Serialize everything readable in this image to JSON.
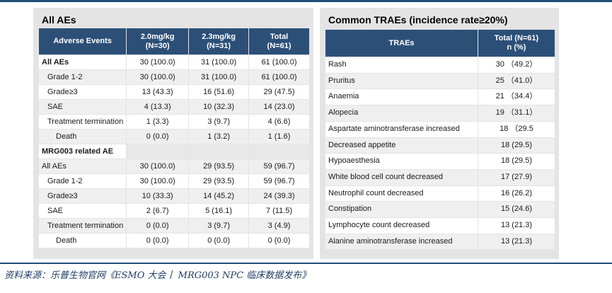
{
  "left": {
    "title": "All AEs",
    "headers": [
      "Adverse Events",
      "2.0mg/kg\n(N=30)",
      "2.3mg/kg\n(N=31)",
      "Total\n(N=61)"
    ],
    "rows": [
      {
        "label": "All AEs",
        "c1": "30 (100.0)",
        "c2": "31 (100.0)",
        "c3": "61 (100.0)"
      },
      {
        "label": "Grade 1-2",
        "c1": "30 (100.0)",
        "c2": "31 (100.0)",
        "c3": "61 (100.0)"
      },
      {
        "label": "Grade≥3",
        "c1": "13 (43.3)",
        "c2": "16 (51.6)",
        "c3": "29 (47.5)"
      },
      {
        "label": "SAE",
        "c1": "4 (13.3)",
        "c2": "10 (32.3)",
        "c3": "14 (23.0)"
      },
      {
        "label": "Treatment termination",
        "c1": "1 (3.3)",
        "c2": "3 (9.7)",
        "c3": "4 (6.6)"
      },
      {
        "label": "Death",
        "c1": "0 (0.0)",
        "c2": "1 (3.2)",
        "c3": "1 (1.6)"
      },
      {
        "label": "MRG003 related AE",
        "c1": "",
        "c2": "",
        "c3": ""
      },
      {
        "label": "All AEs",
        "c1": "30 (100.0)",
        "c2": "29 (93.5)",
        "c3": "59 (96.7)"
      },
      {
        "label": "Grade 1-2",
        "c1": "30 (100.0)",
        "c2": "29 (93.5)",
        "c3": "59 (96.7)"
      },
      {
        "label": "Grade≥3",
        "c1": "10 (33.3)",
        "c2": "14 (45.2)",
        "c3": "24 (39.3)"
      },
      {
        "label": "SAE",
        "c1": "2 (6.7)",
        "c2": "5 (16.1)",
        "c3": "7 (11.5)"
      },
      {
        "label": "Treatment termination",
        "c1": "0 (0.0)",
        "c2": "3 (9.7)",
        "c3": "3 (4.9)"
      },
      {
        "label": "Death",
        "c1": "0 (0.0)",
        "c2": "0 (0.0)",
        "c3": "0 (0.0)"
      }
    ]
  },
  "right": {
    "title": "Common TRAEs (incidence rate≥20%)",
    "headers": [
      "TRAEs",
      "Total (N=61)\nn (%)"
    ],
    "rows": [
      {
        "label": "Rash",
        "value": "30 （49.2）"
      },
      {
        "label": "Pruritus",
        "value": "25 （41.0）"
      },
      {
        "label": "Anaemia",
        "value": "21 （34.4）"
      },
      {
        "label": "Alopecia",
        "value": "19 （31.1）"
      },
      {
        "label": "Aspartate aminotransferase increased",
        "value": "18 （29.5"
      },
      {
        "label": "Decreased appetite",
        "value": "18 (29.5)"
      },
      {
        "label": "Hypoaesthesia",
        "value": "18 (29.5)"
      },
      {
        "label": "White blood cell count decreased",
        "value": "17 (27.9)"
      },
      {
        "label": "Neutrophil count decreased",
        "value": "16 (26.2)"
      },
      {
        "label": "Constipation",
        "value": "15 (24.6)"
      },
      {
        "label": "Lymphocyte count decreased",
        "value": "13 (21.3)"
      },
      {
        "label": "Alanine aminotransferase increased",
        "value": "13 (21.3)"
      }
    ]
  },
  "source": "资料来源：乐普生物官网《ESMO 大会丨 MRG003 NPC 临床数据发布》"
}
